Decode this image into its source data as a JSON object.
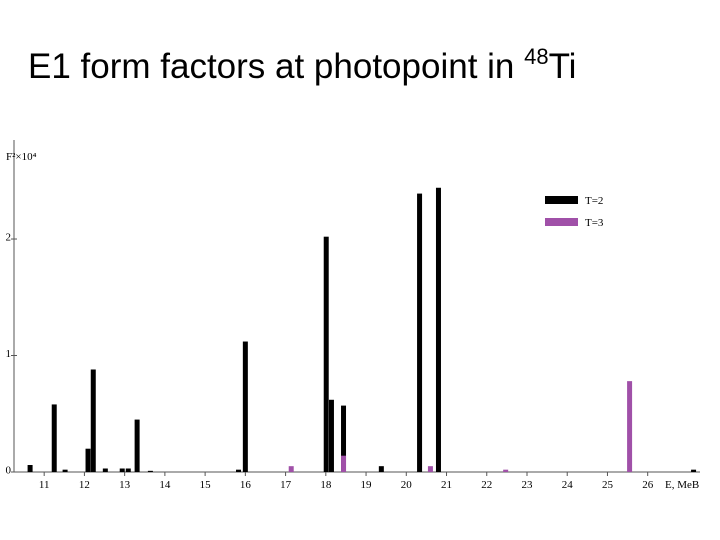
{
  "title_prefix": "E1 form factors at photopoint in ",
  "title_superscript": "48",
  "title_suffix": "Ti",
  "chart_data": {
    "type": "bar",
    "ylabel": "F²×10⁴",
    "xlabel": "E, MeB",
    "xlim": [
      10.25,
      27.3
    ],
    "xticks": [
      11,
      12,
      13,
      14,
      15,
      16,
      17,
      18,
      19,
      20,
      21,
      22,
      23,
      24,
      25,
      26
    ],
    "ylim": [
      0,
      2.85
    ],
    "yticks": [
      0,
      1,
      2
    ],
    "legend": "upper right",
    "series": [
      {
        "name": "T=2",
        "color": "#000000",
        "x": [
          10.65,
          11.25,
          11.52,
          12.09,
          12.22,
          12.52,
          12.94,
          13.09,
          13.31,
          13.64,
          15.83,
          16.0,
          18.01,
          18.14,
          18.44,
          19.38,
          20.33,
          20.8,
          27.14
        ],
        "values": [
          0.06,
          0.58,
          0.02,
          0.2,
          0.88,
          0.03,
          0.03,
          0.03,
          0.45,
          0.01,
          0.02,
          1.12,
          2.02,
          0.62,
          0.57,
          0.05,
          2.39,
          2.44,
          0.02
        ]
      },
      {
        "name": "T=3",
        "color": "#a050a8",
        "x": [
          17.14,
          18.44,
          20.6,
          22.47,
          25.55
        ],
        "values": [
          0.05,
          0.14,
          0.05,
          0.02,
          0.78
        ]
      }
    ]
  }
}
